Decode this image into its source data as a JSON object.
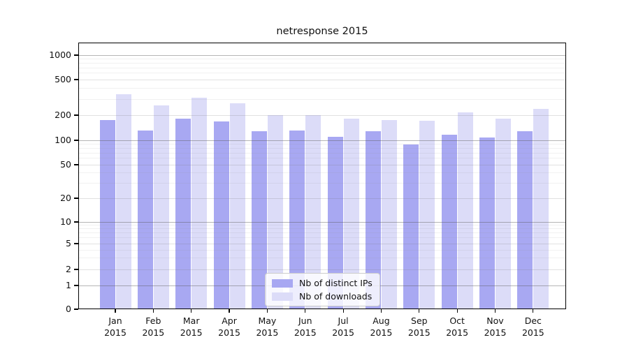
{
  "title": "netresponse 2015",
  "chart_data": {
    "type": "bar",
    "title": "netresponse 2015",
    "categories": [
      "Jan",
      "Feb",
      "Mar",
      "Apr",
      "May",
      "Jun",
      "Jul",
      "Aug",
      "Sep",
      "Oct",
      "Nov",
      "Dec"
    ],
    "category_year": "2015",
    "series": [
      {
        "name": "Nb of distinct IPs",
        "color": "#a8a8f2",
        "values": [
          175,
          131,
          182,
          168,
          128,
          130,
          111,
          128,
          88,
          117,
          108,
          128
        ]
      },
      {
        "name": "Nb of downloads",
        "color": "#dcdcf8",
        "values": [
          345,
          255,
          315,
          272,
          200,
          200,
          180,
          176,
          172,
          216,
          180,
          237
        ]
      }
    ],
    "yscale": "symlog",
    "yticks": [
      0,
      1,
      2,
      5,
      10,
      20,
      50,
      100,
      200,
      500,
      1000
    ],
    "ylim": [
      0,
      1400
    ],
    "grid": true,
    "legend_position": "lower center"
  },
  "legend": {
    "items": [
      {
        "label": "Nb of distinct IPs",
        "color": "#a8a8f2"
      },
      {
        "label": "Nb of downloads",
        "color": "#dcdcf8"
      }
    ]
  }
}
